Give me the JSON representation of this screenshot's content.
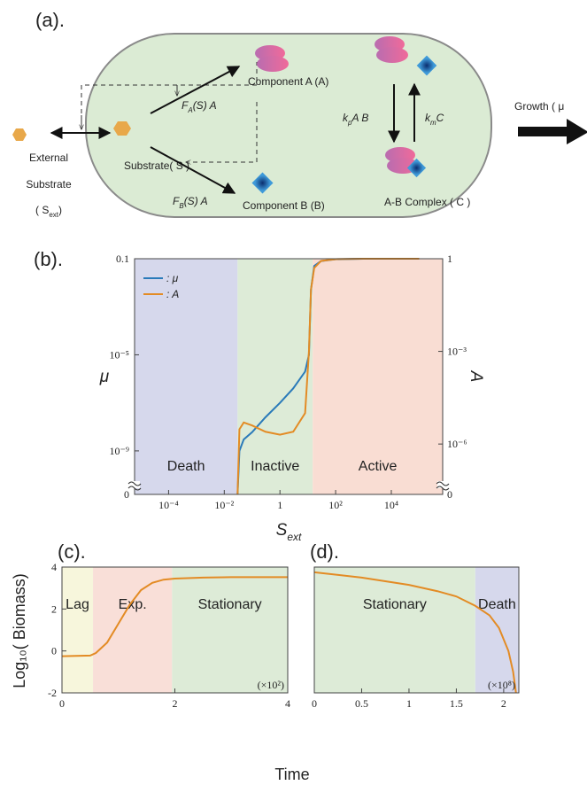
{
  "diagram": {
    "panel_label": "(a).",
    "external": [
      "External",
      "Substrate"
    ],
    "s_ext": {
      "pre": "( S",
      "sub": "ext",
      "post": ")"
    },
    "substrate": "Substrate( S )",
    "component_a": "Component A (A)",
    "component_b": "Component B (B)",
    "complex": "A-B Complex ( C )",
    "fa": {
      "main": "F",
      "sub": "A",
      "post": "(S) A"
    },
    "fb": {
      "main": "F",
      "sub": "B",
      "post": "(S) A"
    },
    "kp": {
      "main": "k",
      "sub": "p",
      "post": "A B"
    },
    "km": {
      "main": "k",
      "sub": "m",
      "post": "C"
    },
    "growth": "Growth ( μ"
  },
  "figure": {
    "xlabel": "Time",
    "ylabel": "Log₁₀( Biomass)"
  },
  "chart_data": [
    {
      "type": "line",
      "panel_label": "(b).",
      "xlabel": "S",
      "xlabel_sub": "ext",
      "ylabel": "μ",
      "y2label": "A",
      "xscale": "log",
      "yscale": "log",
      "y2scale": "log",
      "axis_break": true,
      "legend": "upper left",
      "xlim": [
        6e-06,
        700000
      ],
      "xticks": [
        {
          "value": 0.0001,
          "label": "10⁻⁴"
        },
        {
          "value": 0.01,
          "label": "10⁻²"
        },
        1,
        {
          "value": 100,
          "label": "10²"
        },
        {
          "value": 10000,
          "label": "10⁴"
        }
      ],
      "ylim": [
        1e-10,
        0.1
      ],
      "yticks": [
        0.1,
        {
          "value": 1e-05,
          "label": "10⁻⁵"
        },
        {
          "value": 1e-09,
          "label": "10⁻⁹"
        },
        0
      ],
      "y2lim": [
        1e-07,
        1
      ],
      "y2ticks": [
        1,
        {
          "value": 0.001,
          "label": "10⁻³"
        },
        {
          "value": 1e-06,
          "label": "10⁻⁶"
        },
        0
      ],
      "regions": [
        {
          "label": "Death",
          "x0": 6e-06,
          "x1": 0.03,
          "color": "#d6d8ec"
        },
        {
          "label": "Inactive",
          "x0": 0.03,
          "x1": 15,
          "color": "#ddebd7"
        },
        {
          "label": "Active",
          "x0": 15,
          "x1": 700000,
          "color": "#f9ddd3"
        }
      ],
      "x": [
        0.03,
        0.035,
        0.05,
        0.1,
        0.3,
        1,
        3,
        8,
        11,
        13,
        17,
        30,
        100,
        1000,
        100000
      ],
      "series": [
        {
          "name": ": μ",
          "color": "#2a7ab9",
          "values": [
            0,
            1e-09,
            3e-09,
            6e-09,
            2.5e-08,
            1e-07,
            4e-07,
            2e-06,
            1e-05,
            0.005,
            0.05,
            0.08,
            0.095,
            0.1,
            0.1
          ]
        },
        {
          "name": ": A",
          "color": "#e38b24",
          "axis": "y2",
          "values": [
            0,
            3e-06,
            5e-06,
            4e-06,
            2.5e-06,
            2e-06,
            2.5e-06,
            1e-05,
            0.001,
            0.1,
            0.5,
            0.85,
            0.97,
            1,
            1
          ]
        }
      ]
    },
    {
      "type": "line",
      "panel_label": "(c).",
      "xlim": [
        0,
        4
      ],
      "xticks": [
        0,
        2,
        4
      ],
      "ylim": [
        -2,
        4
      ],
      "yticks": [
        -2,
        0,
        2,
        4
      ],
      "x_multiplier": "(×10²)",
      "color": "#e38b24",
      "regions": [
        {
          "label": "Lag",
          "x0": 0,
          "x1": 0.55,
          "color": "#f7f6dc"
        },
        {
          "label": "Exp.",
          "x0": 0.55,
          "x1": 1.95,
          "color": "#f9dfd8"
        },
        {
          "label": "Stationary",
          "x0": 1.95,
          "x1": 4,
          "color": "#ddebd7"
        }
      ],
      "x": [
        0,
        0.5,
        0.6,
        0.8,
        1,
        1.2,
        1.4,
        1.6,
        1.8,
        2,
        2.5,
        3,
        4
      ],
      "values": [
        -0.25,
        -0.22,
        -0.1,
        0.4,
        1.3,
        2.2,
        2.9,
        3.25,
        3.4,
        3.45,
        3.5,
        3.52,
        3.52
      ]
    },
    {
      "type": "line",
      "panel_label": "(d).",
      "xlim": [
        0,
        2.16
      ],
      "xticks": [
        0,
        0.5,
        1,
        1.5,
        2
      ],
      "ylim": [
        -2,
        4
      ],
      "x_multiplier": "(×10⁸)",
      "color": "#e38b24",
      "regions": [
        {
          "label": "Stationary",
          "x0": 0,
          "x1": 1.7,
          "color": "#ddebd7"
        },
        {
          "label": "Death",
          "x0": 1.7,
          "x1": 2.16,
          "color": "#d6d8ec"
        }
      ],
      "x": [
        0,
        0.5,
        1,
        1.3,
        1.5,
        1.7,
        1.85,
        1.95,
        2.05,
        2.1,
        2.13
      ],
      "values": [
        3.75,
        3.5,
        3.15,
        2.85,
        2.6,
        2.15,
        1.7,
        1.1,
        0,
        -1,
        -2
      ]
    }
  ]
}
